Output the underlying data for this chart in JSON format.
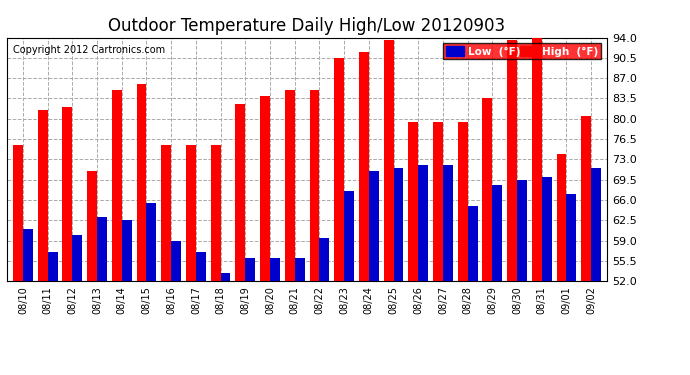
{
  "title": "Outdoor Temperature Daily High/Low 20120903",
  "copyright": "Copyright 2012 Cartronics.com",
  "dates": [
    "08/10",
    "08/11",
    "08/12",
    "08/13",
    "08/14",
    "08/15",
    "08/16",
    "08/17",
    "08/18",
    "08/19",
    "08/20",
    "08/21",
    "08/22",
    "08/23",
    "08/24",
    "08/25",
    "08/26",
    "08/27",
    "08/28",
    "08/29",
    "08/30",
    "08/31",
    "09/01",
    "09/02"
  ],
  "highs": [
    75.5,
    81.5,
    82.0,
    71.0,
    85.0,
    86.0,
    75.5,
    75.5,
    75.5,
    82.5,
    84.0,
    85.0,
    85.0,
    90.5,
    91.5,
    93.5,
    79.5,
    79.5,
    79.5,
    83.5,
    93.5,
    94.0,
    74.0,
    80.5
  ],
  "lows": [
    61.0,
    57.0,
    60.0,
    63.0,
    62.5,
    65.5,
    59.0,
    57.0,
    53.5,
    56.0,
    56.0,
    56.0,
    59.5,
    67.5,
    71.0,
    71.5,
    72.0,
    72.0,
    65.0,
    68.5,
    69.5,
    70.0,
    67.0,
    71.5
  ],
  "high_color": "#ff0000",
  "low_color": "#0000cc",
  "bg_color": "#ffffff",
  "plot_bg_color": "#ffffff",
  "grid_color": "#aaaaaa",
  "yticks": [
    52.0,
    55.5,
    59.0,
    62.5,
    66.0,
    69.5,
    73.0,
    76.5,
    80.0,
    83.5,
    87.0,
    90.5,
    94.0
  ],
  "ymin": 52.0,
  "ymax": 94.0,
  "title_fontsize": 12,
  "copyright_fontsize": 7,
  "legend_low_label": "Low  (°F)",
  "legend_high_label": "High  (°F)",
  "bar_width": 0.4
}
